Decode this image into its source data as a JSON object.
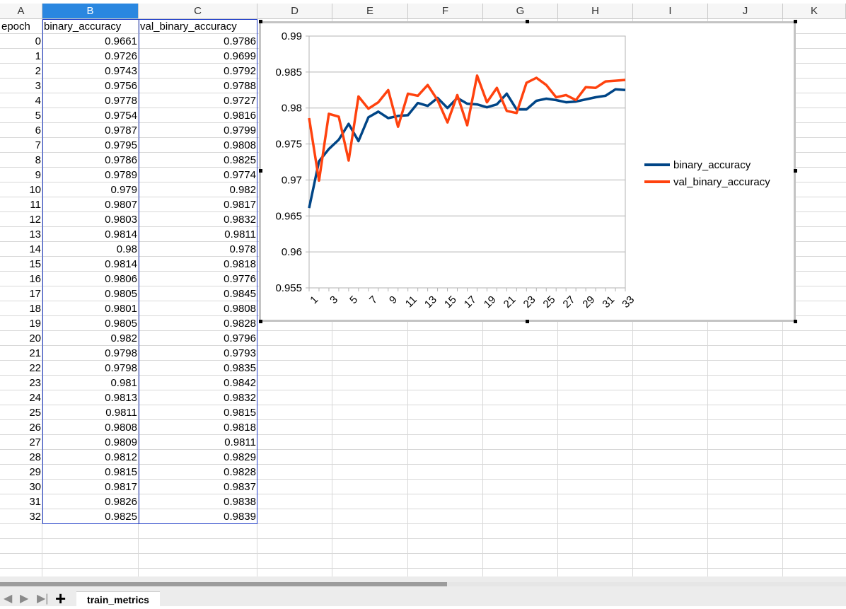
{
  "columns": [
    {
      "letter": "A",
      "selected": false
    },
    {
      "letter": "B",
      "selected": true
    },
    {
      "letter": "C",
      "selected": false
    },
    {
      "letter": "D",
      "selected": false
    },
    {
      "letter": "E",
      "selected": false
    },
    {
      "letter": "F",
      "selected": false
    },
    {
      "letter": "G",
      "selected": false
    },
    {
      "letter": "H",
      "selected": false
    },
    {
      "letter": "I",
      "selected": false
    },
    {
      "letter": "J",
      "selected": false
    },
    {
      "letter": "K",
      "selected": false
    }
  ],
  "table": {
    "headers": [
      "epoch",
      "binary_accuracy",
      "val_binary_accuracy"
    ],
    "rows": [
      [
        "0",
        "0.9661",
        "0.9786"
      ],
      [
        "1",
        "0.9726",
        "0.9699"
      ],
      [
        "2",
        "0.9743",
        "0.9792"
      ],
      [
        "3",
        "0.9756",
        "0.9788"
      ],
      [
        "4",
        "0.9778",
        "0.9727"
      ],
      [
        "5",
        "0.9754",
        "0.9816"
      ],
      [
        "6",
        "0.9787",
        "0.9799"
      ],
      [
        "7",
        "0.9795",
        "0.9808"
      ],
      [
        "8",
        "0.9786",
        "0.9825"
      ],
      [
        "9",
        "0.9789",
        "0.9774"
      ],
      [
        "10",
        "0.979",
        "0.982"
      ],
      [
        "11",
        "0.9807",
        "0.9817"
      ],
      [
        "12",
        "0.9803",
        "0.9832"
      ],
      [
        "13",
        "0.9814",
        "0.9811"
      ],
      [
        "14",
        "0.98",
        "0.978"
      ],
      [
        "15",
        "0.9814",
        "0.9818"
      ],
      [
        "16",
        "0.9806",
        "0.9776"
      ],
      [
        "17",
        "0.9805",
        "0.9845"
      ],
      [
        "18",
        "0.9801",
        "0.9808"
      ],
      [
        "19",
        "0.9805",
        "0.9828"
      ],
      [
        "20",
        "0.982",
        "0.9796"
      ],
      [
        "21",
        "0.9798",
        "0.9793"
      ],
      [
        "22",
        "0.9798",
        "0.9835"
      ],
      [
        "23",
        "0.981",
        "0.9842"
      ],
      [
        "24",
        "0.9813",
        "0.9832"
      ],
      [
        "25",
        "0.9811",
        "0.9815"
      ],
      [
        "26",
        "0.9808",
        "0.9818"
      ],
      [
        "27",
        "0.9809",
        "0.9811"
      ],
      [
        "28",
        "0.9812",
        "0.9829"
      ],
      [
        "29",
        "0.9815",
        "0.9828"
      ],
      [
        "30",
        "0.9817",
        "0.9837"
      ],
      [
        "31",
        "0.9826",
        "0.9838"
      ],
      [
        "32",
        "0.9825",
        "0.9839"
      ]
    ]
  },
  "chart_data": {
    "type": "line",
    "x": [
      1,
      2,
      3,
      4,
      5,
      6,
      7,
      8,
      9,
      10,
      11,
      12,
      13,
      14,
      15,
      16,
      17,
      18,
      19,
      20,
      21,
      22,
      23,
      24,
      25,
      26,
      27,
      28,
      29,
      30,
      31,
      32,
      33
    ],
    "x_tick_labels": [
      "1",
      "3",
      "5",
      "7",
      "9",
      "11",
      "13",
      "15",
      "17",
      "19",
      "21",
      "23",
      "25",
      "27",
      "29",
      "31",
      "33"
    ],
    "y_tick_labels": [
      "0.99",
      "0.985",
      "0.98",
      "0.975",
      "0.97",
      "0.965",
      "0.96",
      "0.955"
    ],
    "ylim": [
      0.955,
      0.99
    ],
    "grid": true,
    "legend_position": "right",
    "series": [
      {
        "name": "binary_accuracy",
        "color": "#004586",
        "values": [
          0.9661,
          0.9726,
          0.9743,
          0.9756,
          0.9778,
          0.9754,
          0.9787,
          0.9795,
          0.9786,
          0.9789,
          0.979,
          0.9807,
          0.9803,
          0.9814,
          0.98,
          0.9814,
          0.9806,
          0.9805,
          0.9801,
          0.9805,
          0.982,
          0.9798,
          0.9798,
          0.981,
          0.9813,
          0.9811,
          0.9808,
          0.9809,
          0.9812,
          0.9815,
          0.9817,
          0.9826,
          0.9825
        ]
      },
      {
        "name": "val_binary_accuracy",
        "color": "#ff420e",
        "values": [
          0.9786,
          0.9699,
          0.9792,
          0.9788,
          0.9727,
          0.9816,
          0.9799,
          0.9808,
          0.9825,
          0.9774,
          0.982,
          0.9817,
          0.9832,
          0.9811,
          0.978,
          0.9818,
          0.9776,
          0.9845,
          0.9808,
          0.9828,
          0.9796,
          0.9793,
          0.9835,
          0.9842,
          0.9832,
          0.9815,
          0.9818,
          0.9811,
          0.9829,
          0.9828,
          0.9837,
          0.9838,
          0.9839
        ]
      }
    ]
  },
  "sheet_tabs": {
    "add_symbol": "+",
    "active_tab": "train_metrics"
  },
  "nav_icons": [
    "first-sheet-icon",
    "prev-sheet-icon",
    "next-sheet-icon",
    "last-sheet-icon"
  ]
}
